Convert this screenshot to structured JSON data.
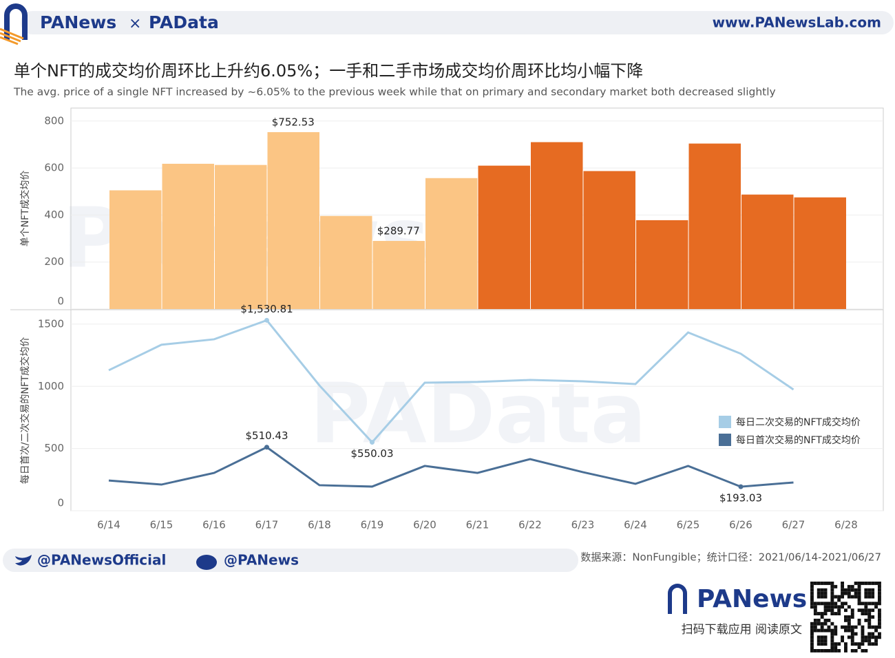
{
  "header": {
    "brand_left": "PANews",
    "brand_sep": "×",
    "brand_right": "PAData",
    "url": "www.PANewsLab.com",
    "title": "单个NFT的成交均价周环比上升约6.05%；一手和二手市场成交均价周环比均小幅下降",
    "subtitle": "The avg. price of a single NFT increased by ~6.05% to the previous week while that on primary and secondary market both decreased slightly"
  },
  "watermarks": [
    "PANews",
    "PAData"
  ],
  "chart_data": [
    {
      "type": "bar",
      "y_label": "单个NFT成交均价",
      "values": [
        505,
        618,
        613,
        752.53,
        396,
        289.77,
        557,
        610,
        710,
        587,
        378,
        704,
        487,
        475
      ],
      "value_labels": [
        null,
        null,
        null,
        "$752.53",
        null,
        "$289.77",
        null,
        null,
        null,
        null,
        null,
        null,
        null,
        null
      ],
      "colors": [
        "#fbc584",
        "#fbc584",
        "#fbc584",
        "#fbc584",
        "#fbc584",
        "#fbc584",
        "#fbc584",
        "#e66b22",
        "#e66b22",
        "#e66b22",
        "#e66b22",
        "#e66b22",
        "#e66b22",
        "#e66b22"
      ],
      "ylim": [
        0,
        855
      ],
      "yticks": [
        0,
        200,
        400,
        600,
        800
      ],
      "grid": true
    },
    {
      "type": "line",
      "y_label": "每日首次/二次交易的NFT成交均价",
      "categories": [
        "6/14",
        "6/15",
        "6/16",
        "6/17",
        "6/18",
        "6/19",
        "6/20",
        "6/21",
        "6/22",
        "6/23",
        "6/24",
        "6/25",
        "6/26",
        "6/27",
        "6/28"
      ],
      "series": [
        {
          "name": "每日二次交易的NFT成交均价",
          "color": "#a6cde6",
          "values": [
            1129,
            1334,
            1378,
            1530.81,
            1007,
            550.03,
            1029,
            1035,
            1051,
            1040,
            1018,
            1433,
            1262,
            974,
            null
          ],
          "value_labels": [
            null,
            null,
            null,
            "$1,530.81",
            null,
            "$550.03",
            null,
            null,
            null,
            null,
            null,
            null,
            null,
            null,
            null
          ]
        },
        {
          "name": "每日首次交易的NFT成交均价",
          "color": "#4a6f96",
          "values": [
            243,
            210,
            304,
            510.43,
            205,
            194,
            360,
            304,
            415,
            310,
            216,
            360,
            193.03,
            227,
            null
          ],
          "value_labels": [
            null,
            null,
            null,
            "$510.43",
            null,
            null,
            null,
            null,
            null,
            null,
            null,
            null,
            "$193.03",
            null,
            null
          ]
        }
      ],
      "ylim": [
        0,
        1610
      ],
      "yticks": [
        0,
        500,
        1000,
        1500
      ],
      "grid": true,
      "legend": "right"
    }
  ],
  "footer": {
    "twitter": "@PANewsOfficial",
    "weibo": "@PANews",
    "source": "数据来源：NonFungible；统计口径：2021/06/14-2021/06/27",
    "logo": "PANews",
    "cta": "扫码下载应用  阅读原文"
  }
}
